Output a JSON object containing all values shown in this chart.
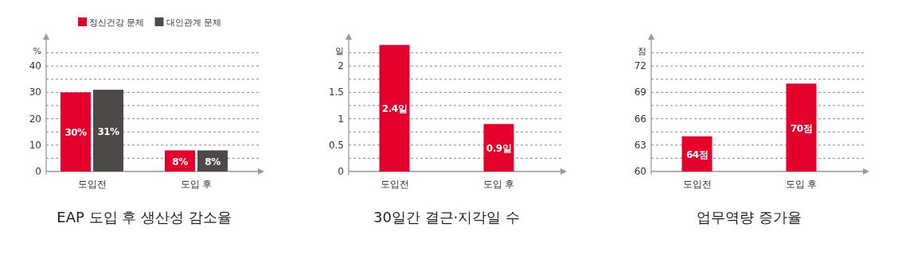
{
  "chart_data": [
    {
      "type": "bar",
      "title": "EAP 도입 후 생산성 감소율",
      "ylabel": "%",
      "categories": [
        "도입전",
        "도입 후"
      ],
      "series": [
        {
          "name": "정신건강 문제",
          "color": "#e4002b",
          "values": [
            30,
            8
          ],
          "value_labels": [
            "30%",
            "8%"
          ]
        },
        {
          "name": "대인관계 문제",
          "color": "#4d4948",
          "values": [
            31,
            8
          ],
          "value_labels": [
            "31%",
            "8%"
          ]
        }
      ],
      "ylim": [
        0,
        50
      ],
      "yticks": [
        0,
        {
          "value": 5,
          "label": null
        },
        10,
        {
          "value": 15,
          "label": null
        },
        20,
        {
          "value": 25,
          "label": null
        },
        30,
        {
          "value": 35,
          "label": null
        },
        40,
        {
          "value": 45,
          "label": null
        }
      ],
      "grid": "y",
      "legend": "top"
    },
    {
      "type": "bar",
      "title": "30일간 결근·지각일 수",
      "ylabel": "일",
      "categories": [
        "도입전",
        "도입 후"
      ],
      "series": [
        {
          "color": "#e4002b",
          "values": [
            2.4,
            0.9
          ],
          "value_labels": [
            "2.4일",
            "0.9일"
          ]
        }
      ],
      "ylim": [
        0,
        2.5
      ],
      "yticks": [
        0,
        {
          "value": 0.25,
          "label": null
        },
        0.5,
        {
          "value": 0.75,
          "label": null
        },
        1,
        {
          "value": 1.25,
          "label": null
        },
        1.5,
        {
          "value": 1.75,
          "label": null
        },
        2,
        {
          "value": 2.25,
          "label": null
        }
      ],
      "grid": "y"
    },
    {
      "type": "bar",
      "title": "업무역량 증가율",
      "ylabel": "점",
      "categories": [
        "도입전",
        "도입 후"
      ],
      "series": [
        {
          "color": "#e4002b",
          "values": [
            64,
            70
          ],
          "value_labels": [
            "64점",
            "70점"
          ]
        }
      ],
      "ylim": [
        60,
        75
      ],
      "yticks": [
        60,
        {
          "value": 61.5,
          "label": null
        },
        63,
        {
          "value": 64.5,
          "label": null
        },
        66,
        {
          "value": 67.5,
          "label": null
        },
        69,
        {
          "value": 70.5,
          "label": null
        },
        72,
        {
          "value": 73.5,
          "label": null
        }
      ],
      "grid": "y"
    }
  ]
}
